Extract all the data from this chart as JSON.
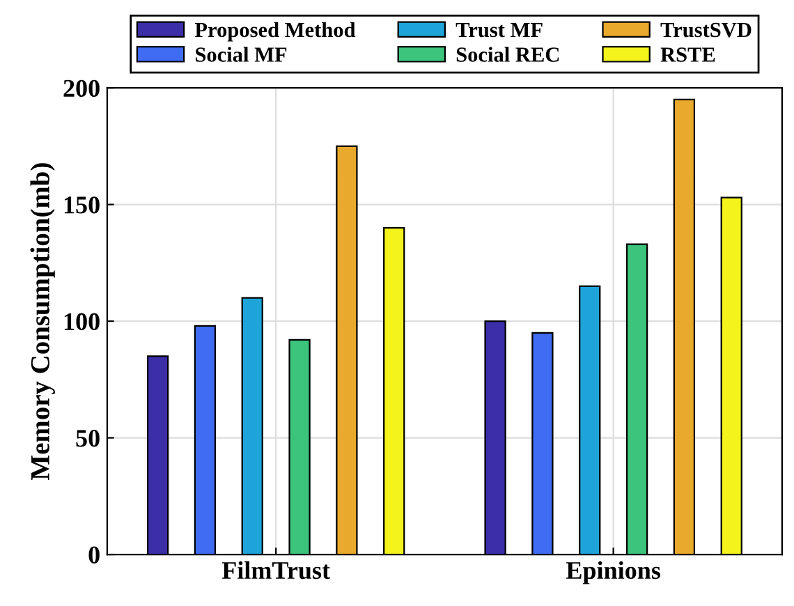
{
  "chart_data": {
    "type": "bar",
    "ylabel": "Memory Consumption(mb)",
    "categories": [
      "FilmTrust",
      "Epinions"
    ],
    "series": [
      {
        "name": "Proposed Method",
        "color": "#3b2ea6",
        "values": [
          85,
          100
        ]
      },
      {
        "name": "Social MF",
        "color": "#3f6cf2",
        "values": [
          98,
          95
        ]
      },
      {
        "name": "Trust MF",
        "color": "#1ea4d9",
        "values": [
          110,
          115
        ]
      },
      {
        "name": "Social REC",
        "color": "#3cc47c",
        "values": [
          92,
          133
        ]
      },
      {
        "name": "TrustSVD",
        "color": "#e9a92c",
        "values": [
          175,
          195
        ]
      },
      {
        "name": "RSTE",
        "color": "#f4f41c",
        "values": [
          140,
          153
        ]
      }
    ],
    "ylim": [
      0,
      200
    ],
    "yticks": [
      0,
      50,
      100,
      150,
      200
    ],
    "grid": true,
    "legend": "top"
  }
}
